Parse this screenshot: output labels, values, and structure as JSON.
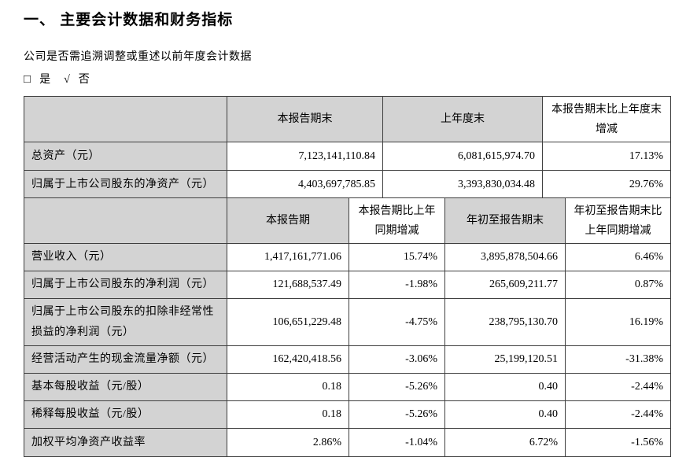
{
  "page": {
    "title": "一、 主要会计数据和财务指标",
    "question": "公司是否需追溯调整或重述以前年度会计数据",
    "checkbox": {
      "box_symbol": "□",
      "yes_label": "是",
      "check_symbol": "√",
      "no_label": "否"
    }
  },
  "colors": {
    "header_shaded": "#d3d3d3",
    "label_shaded": "#d3d3d3",
    "border": "#3f3f3f"
  },
  "table1": {
    "headers": [
      "",
      "本报告期末",
      "上年度末",
      "本报告期末比上年度末增减"
    ],
    "rows": [
      {
        "label": "总资产（元）",
        "values": [
          "7,123,141,110.84",
          "6,081,615,974.70",
          "17.13%"
        ]
      },
      {
        "label": "归属于上市公司股东的净资产（元）",
        "values": [
          "4,403,697,785.85",
          "3,393,830,034.48",
          "29.76%"
        ]
      }
    ]
  },
  "table2": {
    "headers": [
      "",
      "本报告期",
      "本报告期比上年同期增减",
      "年初至报告期末",
      "年初至报告期末比上年同期增减"
    ],
    "rows": [
      {
        "label": "营业收入（元）",
        "values": [
          "1,417,161,771.06",
          "15.74%",
          "3,895,878,504.66",
          "6.46%"
        ]
      },
      {
        "label": "归属于上市公司股东的净利润（元）",
        "values": [
          "121,688,537.49",
          "-1.98%",
          "265,609,211.77",
          "0.87%"
        ]
      },
      {
        "label": "归属于上市公司股东的扣除非经常性损益的净利润（元）",
        "values": [
          "106,651,229.48",
          "-4.75%",
          "238,795,130.70",
          "16.19%"
        ]
      },
      {
        "label": "经营活动产生的现金流量净额（元）",
        "values": [
          "162,420,418.56",
          "-3.06%",
          "25,199,120.51",
          "-31.38%"
        ]
      },
      {
        "label": "基本每股收益（元/股）",
        "values": [
          "0.18",
          "-5.26%",
          "0.40",
          "-2.44%"
        ]
      },
      {
        "label": "稀释每股收益（元/股）",
        "values": [
          "0.18",
          "-5.26%",
          "0.40",
          "-2.44%"
        ]
      },
      {
        "label": "加权平均净资产收益率",
        "values": [
          "2.86%",
          "-1.04%",
          "6.72%",
          "-1.56%"
        ]
      }
    ]
  }
}
